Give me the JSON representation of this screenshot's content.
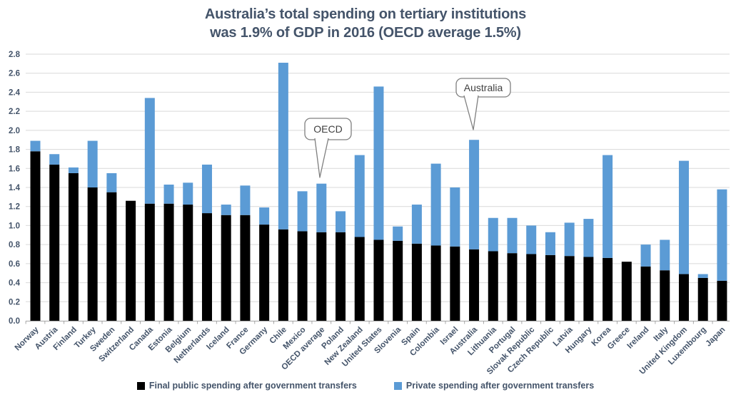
{
  "title": {
    "line1": "Australia’s total spending on tertiary institutions",
    "line2": "was 1.9% of GDP in 2016 (OECD average 1.5%)"
  },
  "legend": [
    {
      "label": "Final public spending after government transfers",
      "color": "#000000"
    },
    {
      "label": "Private spending after government transfers",
      "color": "#5B9BD5"
    }
  ],
  "colors": {
    "public_bar": "#000000",
    "private_bar": "#5B9BD5",
    "title_text": "#44546A",
    "axis_text": "#44546A",
    "gridline": "#D9D9D9",
    "axis_line": "#A6A6A6",
    "callout_border": "#7F7F7F",
    "callout_text": "#3F3F3F",
    "background": "#FFFFFF"
  },
  "chart_data": {
    "type": "bar",
    "stacked": true,
    "grid": true,
    "legend_position": "bottom",
    "title": "Australia’s total spending on tertiary institutions was 1.9% of GDP in 2016 (OECD average 1.5%)",
    "xlabel": "",
    "ylabel": "",
    "ylim": [
      0,
      2.8
    ],
    "ytick_step": 0.2,
    "ytick_labels": [
      "0.0",
      "0.2",
      "0.4",
      "0.6",
      "0.8",
      "1.0",
      "1.2",
      "1.4",
      "1.6",
      "1.8",
      "2.0",
      "2.2",
      "2.4",
      "2.6",
      "2.8"
    ],
    "categories": [
      "Norway",
      "Austria",
      "Finland",
      "Turkey",
      "Sweden",
      "Switzerland",
      "Canada",
      "Estonia",
      "Belgium",
      "Netherlands",
      "Iceland",
      "France",
      "Germany",
      "Chile",
      "Mexico",
      "OECD average",
      "Poland",
      "New Zealand",
      "United States",
      "Slovenia",
      "Spain",
      "Colombia",
      "Israel",
      "Australia",
      "Lithuania",
      "Portugal",
      "Slovak Republic",
      "Czech Republic",
      "Latvia",
      "Hungary",
      "Korea",
      "Greece",
      "Ireland",
      "Italy",
      "United Kingdom",
      "Luxembourg",
      "Japan"
    ],
    "series": [
      {
        "name": "Final public spending after government transfers",
        "color": "#000000",
        "values": [
          1.78,
          1.64,
          1.55,
          1.4,
          1.35,
          1.26,
          1.23,
          1.23,
          1.22,
          1.13,
          1.11,
          1.11,
          1.01,
          0.96,
          0.94,
          0.93,
          0.93,
          0.88,
          0.85,
          0.84,
          0.81,
          0.79,
          0.78,
          0.75,
          0.73,
          0.71,
          0.7,
          0.69,
          0.68,
          0.67,
          0.66,
          0.62,
          0.57,
          0.53,
          0.49,
          0.45,
          0.42
        ]
      },
      {
        "name": "Private spending after government transfers",
        "color": "#5B9BD5",
        "values": [
          0.11,
          0.11,
          0.06,
          0.49,
          0.2,
          0.0,
          1.11,
          0.2,
          0.23,
          0.51,
          0.11,
          0.31,
          0.18,
          1.75,
          0.42,
          0.51,
          0.22,
          0.86,
          1.61,
          0.15,
          0.41,
          0.86,
          0.62,
          1.15,
          0.35,
          0.37,
          0.3,
          0.24,
          0.35,
          0.4,
          1.08,
          0.0,
          0.23,
          0.32,
          1.19,
          0.04,
          0.96
        ]
      }
    ],
    "annotations": [
      {
        "label": "OECD",
        "target_category": "OECD average",
        "box": {
          "x": 427,
          "y": 166,
          "w": 65,
          "h": 30
        },
        "tail": {
          "x1": 441,
          "x2": 460,
          "tip_x": 448,
          "tip_y": 249
        }
      },
      {
        "label": "Australia",
        "target_category": "Australia",
        "box": {
          "x": 639,
          "y": 110,
          "w": 76,
          "h": 26
        },
        "tail": {
          "x1": 650,
          "x2": 670,
          "tip_x": 663,
          "tip_y": 182
        }
      }
    ]
  }
}
